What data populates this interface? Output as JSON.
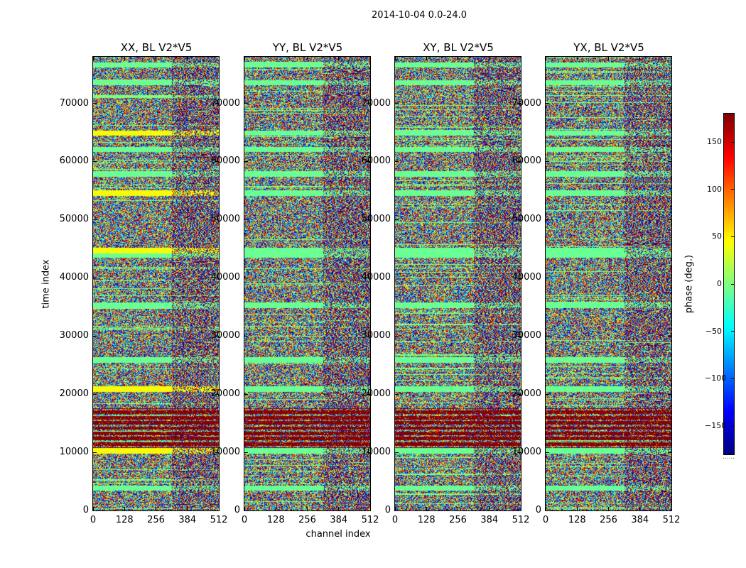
{
  "chart_data": {
    "type": "heatmap",
    "suptitle": "2014-10-04 0.0-24.0",
    "panels": [
      {
        "title": "XX, BL V2*V5",
        "polarization": "XX"
      },
      {
        "title": "YY, BL V2*V5",
        "polarization": "YY"
      },
      {
        "title": "XY, BL V2*V5",
        "polarization": "XY"
      },
      {
        "title": "YX, BL V2*V5",
        "polarization": "YX"
      }
    ],
    "xlabel": "channel index",
    "ylabel": "time index",
    "xlim": [
      0,
      512
    ],
    "ylim": [
      0,
      78000
    ],
    "xticks": [
      "0",
      "128",
      "256",
      "384",
      "512"
    ],
    "xtick_values": [
      0,
      128,
      256,
      384,
      512
    ],
    "yticks": [
      "0",
      "10000",
      "20000",
      "30000",
      "40000",
      "50000",
      "60000",
      "70000"
    ],
    "ytick_values": [
      0,
      10000,
      20000,
      30000,
      40000,
      50000,
      60000,
      70000
    ],
    "colorbar": {
      "label": "phase (deg.)",
      "range": [
        -180,
        180
      ],
      "ticks": [
        "150",
        "100",
        "50",
        "0",
        "−50",
        "−100",
        "−150"
      ],
      "tick_values": [
        150,
        100,
        50,
        0,
        -50,
        -100,
        -150
      ],
      "colormap": "jet"
    },
    "features": {
      "saturated_band_time_range": [
        10000,
        17500
      ],
      "uniform_stripe_times": [
        3800,
        10200,
        20800,
        25800,
        35200,
        43800,
        44600,
        54500,
        57800,
        62000,
        64800,
        73500,
        76500
      ],
      "fringe_channel_start": 320
    }
  }
}
